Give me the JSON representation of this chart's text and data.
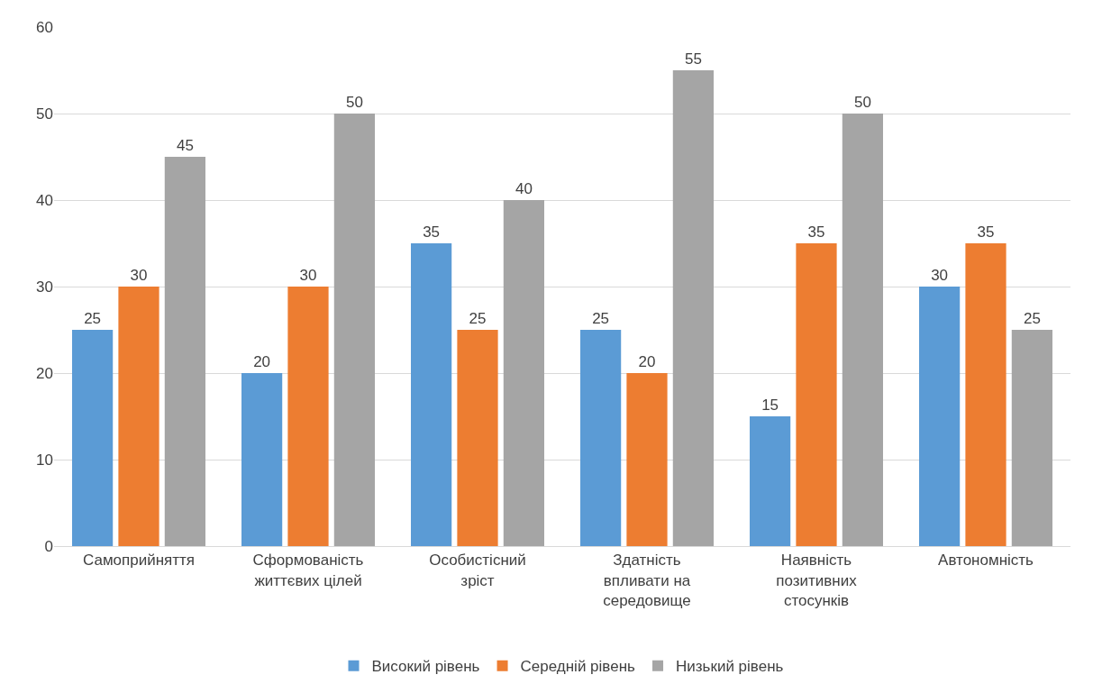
{
  "chart_data": {
    "type": "bar",
    "categories": [
      "Самоприйняття",
      "Сформованість життєвих цілей",
      "Особистісний зріст",
      "Здатність впливати на середовище",
      "Наявність позитивних стосунків",
      "Автономність"
    ],
    "series": [
      {
        "name": "Високий рівень",
        "color": "#5b9bd5",
        "values": [
          25,
          20,
          35,
          25,
          15,
          30
        ]
      },
      {
        "name": "Середній рівень",
        "color": "#ed7d31",
        "values": [
          30,
          30,
          25,
          20,
          35,
          35
        ]
      },
      {
        "name": "Низький рівень",
        "color": "#a5a5a5",
        "values": [
          45,
          50,
          40,
          55,
          50,
          25
        ]
      }
    ],
    "ylim": [
      0,
      60
    ],
    "yticks": [
      0,
      10,
      20,
      30,
      40,
      50,
      60
    ],
    "grid": "y",
    "legend": "bottom",
    "data_labels": true
  }
}
